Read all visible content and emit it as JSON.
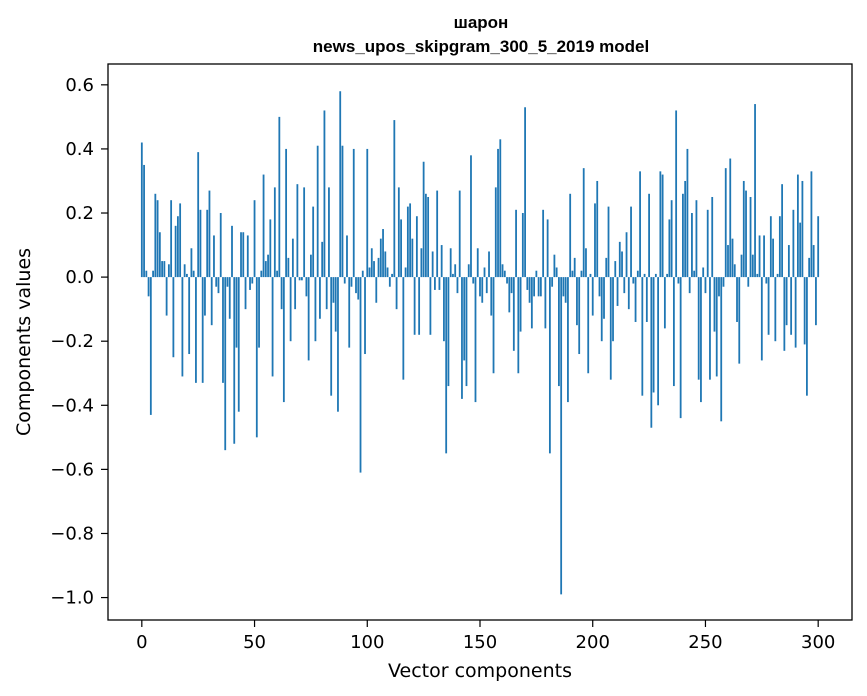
{
  "chart_data": {
    "type": "bar",
    "title_line1": "шарон",
    "title_line2": "news_upos_skipgram_300_5_2019 model",
    "xlabel": "Vector components",
    "ylabel": "Components values",
    "xlim": [
      -15,
      315
    ],
    "ylim": [
      -1.07,
      0.665
    ],
    "xticks": [
      0,
      50,
      100,
      150,
      200,
      250,
      300
    ],
    "xtick_labels": [
      "0",
      "50",
      "100",
      "150",
      "200",
      "250",
      "300"
    ],
    "yticks": [
      -1.0,
      -0.8,
      -0.6,
      -0.4,
      -0.2,
      0.0,
      0.2,
      0.4,
      0.6
    ],
    "ytick_labels": [
      "−1.0",
      "−0.8",
      "−0.6",
      "−0.4",
      "−0.2",
      "0.0",
      "0.2",
      "0.4",
      "0.6"
    ],
    "bar_color": "#1f77b4",
    "grid": false,
    "values": [
      0.42,
      0.35,
      0.02,
      -0.06,
      -0.43,
      0.02,
      0.26,
      0.24,
      0.14,
      0.05,
      0.05,
      -0.12,
      0.04,
      0.24,
      -0.25,
      0.16,
      0.19,
      0.23,
      -0.31,
      0.04,
      0.01,
      -0.24,
      0.09,
      0.02,
      -0.33,
      0.39,
      0.21,
      -0.33,
      -0.12,
      0.21,
      0.27,
      -0.15,
      0.13,
      -0.03,
      -0.05,
      0.2,
      -0.33,
      -0.54,
      -0.03,
      -0.13,
      0.16,
      -0.52,
      -0.22,
      -0.42,
      0.14,
      0.14,
      -0.1,
      0.13,
      -0.04,
      -0.02,
      0.24,
      -0.5,
      -0.22,
      0.02,
      0.32,
      0.05,
      0.07,
      0.18,
      -0.31,
      0.28,
      0.02,
      0.5,
      -0.1,
      -0.39,
      0.4,
      0.06,
      -0.2,
      0.12,
      -0.1,
      0.29,
      -0.01,
      -0.01,
      0.28,
      -0.06,
      -0.26,
      0.07,
      0.22,
      -0.2,
      0.41,
      -0.13,
      0.11,
      0.52,
      -0.1,
      0.28,
      -0.37,
      -0.08,
      -0.17,
      -0.42,
      0.58,
      0.41,
      -0.02,
      0.13,
      -0.22,
      -0.03,
      0.4,
      -0.05,
      -0.07,
      -0.61,
      0.02,
      -0.24,
      0.4,
      0.03,
      0.09,
      0.05,
      -0.08,
      0.06,
      0.12,
      0.15,
      0.08,
      0.03,
      -0.03,
      0.01,
      0.49,
      -0.1,
      0.28,
      0.18,
      -0.32,
      0.03,
      0.22,
      0.23,
      0.12,
      -0.18,
      0.19,
      -0.18,
      0.09,
      0.36,
      0.26,
      0.25,
      -0.18,
      0.08,
      -0.04,
      0.27,
      -0.04,
      0.1,
      -0.2,
      -0.55,
      -0.34,
      0.09,
      0.01,
      0.04,
      -0.05,
      0.27,
      -0.38,
      -0.26,
      -0.34,
      0.04,
      0.38,
      -0.02,
      -0.39,
      0.09,
      -0.06,
      -0.08,
      0.03,
      -0.05,
      0.08,
      -0.12,
      -0.3,
      0.28,
      0.4,
      0.43,
      0.04,
      0.02,
      -0.02,
      -0.11,
      -0.05,
      -0.23,
      0.21,
      -0.3,
      -0.17,
      0.2,
      0.53,
      -0.04,
      -0.08,
      -0.16,
      -0.06,
      0.02,
      -0.06,
      -0.06,
      0.21,
      -0.16,
      0.18,
      -0.55,
      -0.03,
      0.07,
      0.03,
      -0.34,
      -0.99,
      -0.06,
      -0.08,
      -0.39,
      0.26,
      0.02,
      0.06,
      -0.15,
      -0.24,
      0.02,
      0.34,
      0.09,
      -0.3,
      0.01,
      -0.12,
      0.23,
      0.3,
      -0.06,
      -0.2,
      -0.13,
      0.06,
      0.22,
      -0.32,
      -0.2,
      0.05,
      -0.09,
      0.11,
      0.08,
      -0.05,
      0.14,
      -0.1,
      0.22,
      -0.02,
      -0.14,
      0.02,
      0.33,
      -0.37,
      0.01,
      -0.14,
      0.26,
      -0.47,
      -0.36,
      0.01,
      -0.4,
      0.33,
      0.32,
      -0.16,
      0.01,
      0.18,
      0.24,
      -0.34,
      0.52,
      -0.02,
      -0.44,
      0.26,
      0.3,
      0.4,
      -0.05,
      0.2,
      0.02,
      0.24,
      -0.32,
      -0.39,
      0.03,
      -0.05,
      0.21,
      -0.32,
      0.25,
      -0.17,
      -0.31,
      -0.06,
      -0.45,
      -0.03,
      0.34,
      0.1,
      0.37,
      0.12,
      0.04,
      -0.14,
      -0.27,
      0.07,
      0.3,
      0.27,
      -0.03,
      0.25,
      0.07,
      0.54,
      0.01,
      0.13,
      -0.26,
      0.13,
      -0.02,
      -0.18,
      0.19,
      0.12,
      -0.2,
      0.01,
      0.19,
      0.29,
      -0.23,
      -0.15,
      0.1,
      -0.18,
      0.21,
      -0.22,
      0.32,
      0.17,
      0.3,
      -0.21,
      -0.37,
      0.06,
      0.33,
      0.1,
      -0.15,
      0.19
    ]
  }
}
